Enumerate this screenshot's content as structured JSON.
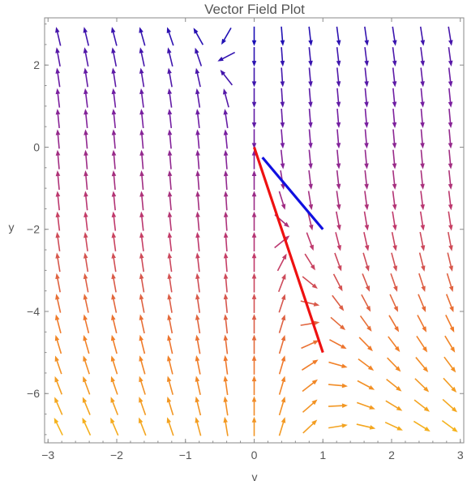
{
  "chart_data": {
    "type": "vector_field",
    "title": "Vector Field Plot",
    "xlabel": "v",
    "ylabel": "y",
    "xlim": [
      -3.05,
      3.05
    ],
    "ylim": [
      -7.2,
      3.15
    ],
    "x_ticks": [
      -3,
      -2,
      -1,
      0,
      1,
      2,
      3
    ],
    "y_ticks": [
      2,
      0,
      -2,
      -4,
      -6
    ],
    "x_tick_labels": [
      "−3",
      "−2",
      "−1",
      "0",
      "1",
      "2",
      "3"
    ],
    "y_tick_labels": [
      "2",
      "0",
      "−2",
      "−4",
      "−6"
    ],
    "field": "dv/dt = v, dy/dt = -(y + 5v)/(1 + 0.15 y^2) (approximate)",
    "grid": {
      "x_min": -2.85,
      "x_max": 2.85,
      "x_count": 15,
      "y_min": -6.8,
      "y_max": 2.7,
      "y_count": 20
    },
    "color_scale": [
      "#1a0fb5",
      "#7a1fa0",
      "#c23a6a",
      "#f07a2a",
      "#f5b81c"
    ],
    "series": [
      {
        "color": "#1010e0",
        "points": [
          [
            0.12,
            -0.25
          ],
          [
            1.0,
            -2.0
          ]
        ]
      },
      {
        "color": "#ee1111",
        "points": [
          [
            0.0,
            0.0
          ],
          [
            1.0,
            -5.0
          ]
        ]
      }
    ]
  }
}
